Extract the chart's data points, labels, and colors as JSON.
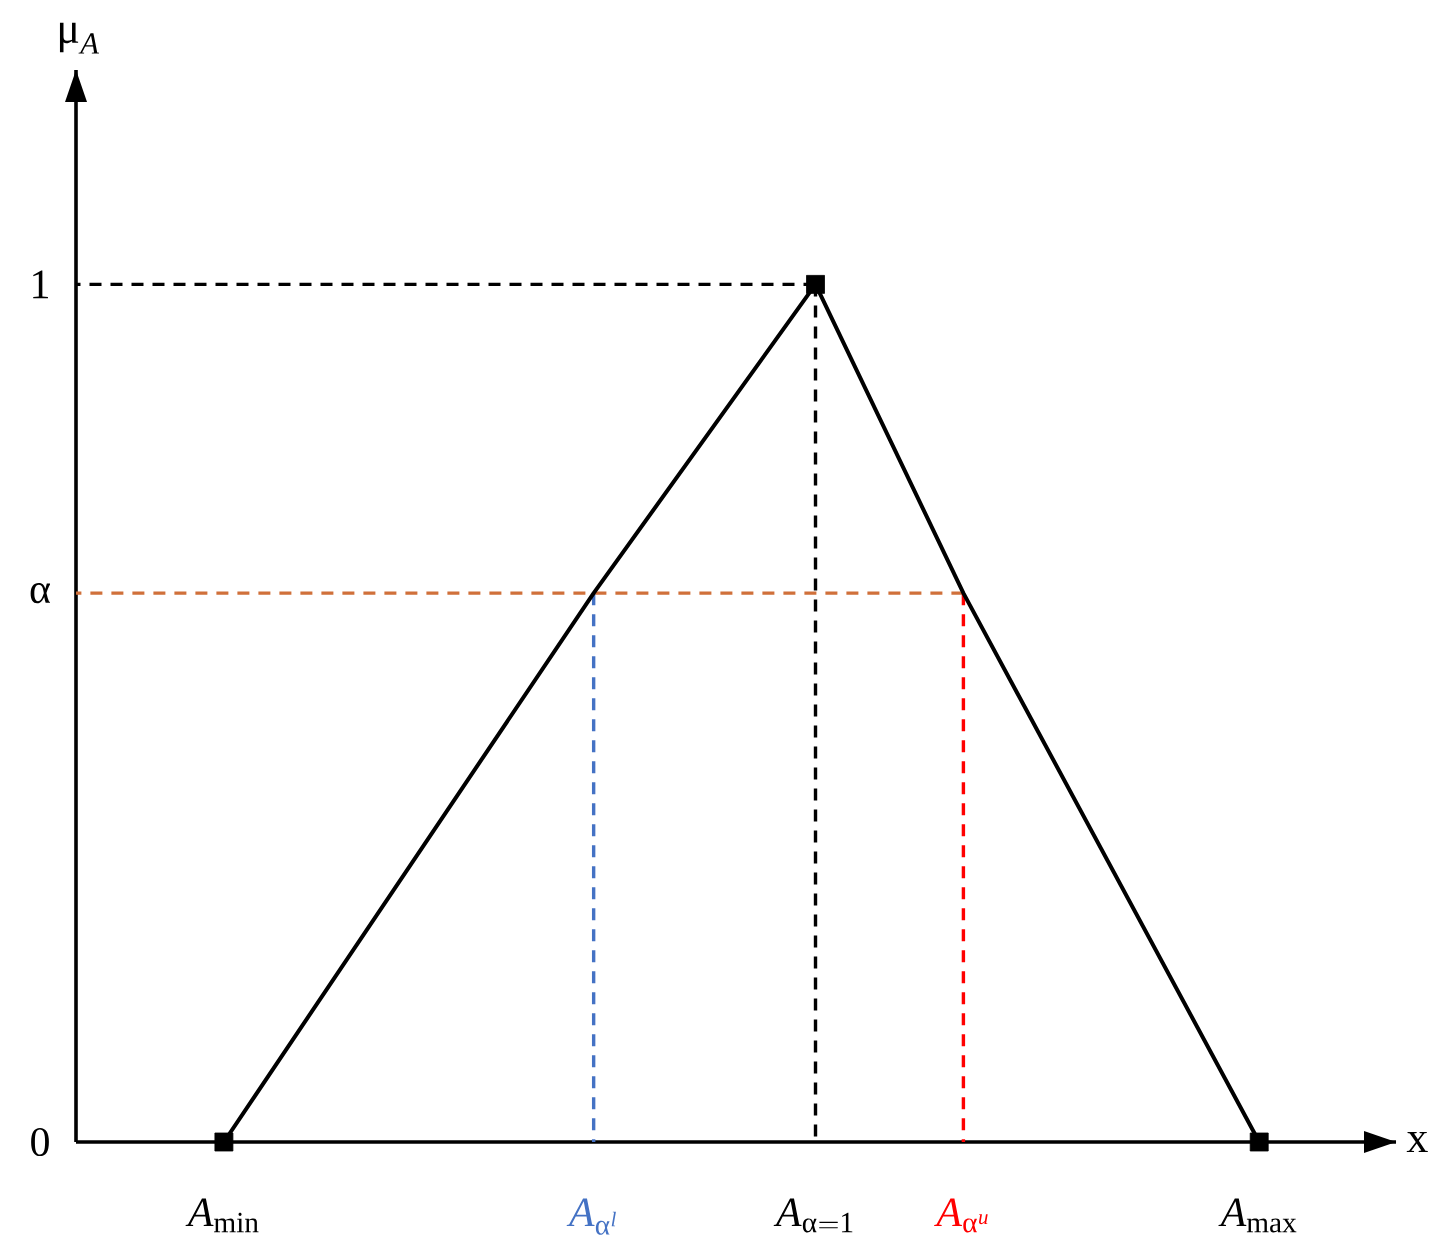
{
  "chart_data": {
    "type": "line",
    "xlabel": "x",
    "ylabel": "\\mu_{A}",
    "categories": [
      "A_{\\mathrm{min}}",
      null,
      null,
      null,
      null,
      "A_{\\alpha^{l}}",
      null,
      null,
      "A_{\\alpha=1}",
      null,
      "A_{\\alpha^{u}}",
      null,
      null,
      null,
      "A_{\\mathrm{max}}"
    ],
    "ylim": [
      0,
      1.25
    ],
    "yticks": [
      0,
      {
        "value": 0.64,
        "label": "α"
      },
      1
    ],
    "ref_lines": [
      {
        "axis": "y",
        "value": 1,
        "color": "#000000",
        "line_style": "dashed"
      },
      {
        "axis": "y",
        "value": 0.64,
        "color": "#d0703a",
        "line_style": "dashed"
      }
    ],
    "series": [
      {
        "x": [
          "A_{\\alpha^{l}}",
          "A_{\\alpha^{l}}"
        ],
        "values": [
          0,
          0.64
        ],
        "color": "#4472c4",
        "line_style": "dashed",
        "marker": "none"
      },
      {
        "x": [
          "A_{\\alpha=1}",
          "A_{\\alpha=1}"
        ],
        "values": [
          0,
          1
        ],
        "color": "#000000",
        "line_style": "dashed",
        "marker": "none"
      },
      {
        "x": [
          "A_{\\alpha^{u}}",
          "A_{\\alpha^{u}}"
        ],
        "values": [
          0,
          0.64
        ],
        "color": "#ff0000",
        "line_style": "dashed",
        "marker": "none"
      },
      {
        "x": [
          "A_{\\mathrm{min}}",
          "A_{\\alpha^{l}}",
          "A_{\\alpha=1}",
          "A_{\\alpha^{u}}",
          "A_{\\mathrm{max}}"
        ],
        "values": [
          0,
          0.64,
          1,
          0.64,
          0
        ],
        "color": "#000000",
        "line_style": "solid",
        "marker": "none"
      },
      {
        "type": "scatter",
        "x": [
          "A_{\\mathrm{min}}",
          "A_{\\alpha=1}",
          "A_{\\mathrm{max}}"
        ],
        "values": [
          0,
          1,
          0
        ],
        "color": "#000000",
        "marker": "square"
      }
    ]
  }
}
